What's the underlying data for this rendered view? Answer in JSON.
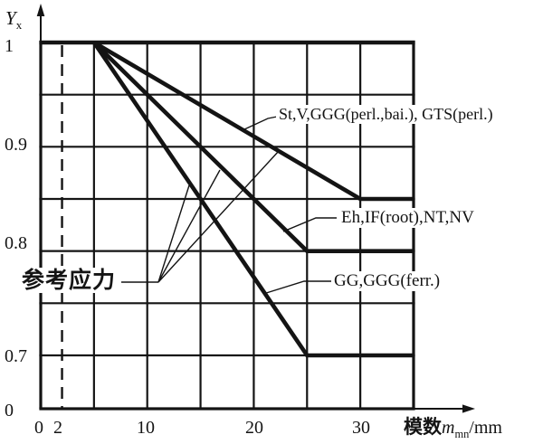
{
  "figure": {
    "y_axis": {
      "symbol": "Y",
      "symbol_sub": "x",
      "ticks": [
        "1",
        "0.9",
        "0.8",
        "0.7",
        "0"
      ]
    },
    "x_axis": {
      "ticks": [
        "0",
        "2",
        "10",
        "20",
        "30"
      ],
      "label_cn": "模数",
      "label_symbol": "m",
      "label_symbol_sub": "mn",
      "label_unit": "/mm"
    },
    "annotation": {
      "text": "参考应力"
    }
  },
  "chart_data": {
    "type": "line",
    "title": "",
    "xlabel": "模数 m_mn/mm",
    "ylabel": "Y_x",
    "x_range": [
      0,
      35
    ],
    "y_range_shown": [
      0.7,
      1.0
    ],
    "y_axis_break_to_zero": true,
    "x_ticks": [
      0,
      2,
      10,
      20,
      30
    ],
    "y_ticks": [
      1,
      0.9,
      0.8,
      0.7,
      0
    ],
    "x_gridlines": [
      0,
      5,
      10,
      15,
      20,
      25,
      30,
      35
    ],
    "y_gridlines": [
      1,
      0.95,
      0.9,
      0.85,
      0.8,
      0.75,
      0.7
    ],
    "dashed_guide_x": 2,
    "grid": true,
    "legend_position": "inline-labels",
    "series": [
      {
        "name": "St,V,GGG(perl.,bai.), GTS(perl.)",
        "points": [
          [
            5,
            1.0
          ],
          [
            30,
            0.85
          ],
          [
            35,
            0.85
          ]
        ]
      },
      {
        "name": "Eh,IF(root),NT,NV",
        "points": [
          [
            5,
            1.0
          ],
          [
            25,
            0.8
          ],
          [
            35,
            0.8
          ]
        ]
      },
      {
        "name": "GG,GGG(ferr.)",
        "points": [
          [
            5,
            1.0
          ],
          [
            25,
            0.7
          ],
          [
            35,
            0.7
          ]
        ]
      }
    ],
    "annotation": {
      "text": "参考应力",
      "points_to": "all three curves"
    }
  }
}
